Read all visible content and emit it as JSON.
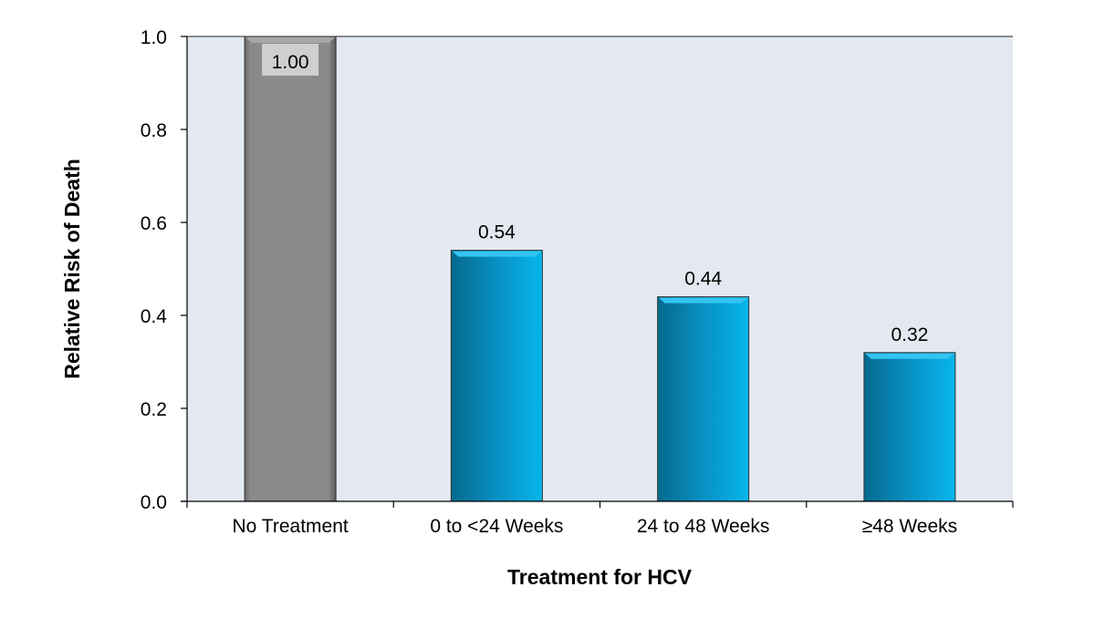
{
  "chart_data": {
    "type": "bar",
    "title": "",
    "xlabel": "Treatment for HCV",
    "ylabel": "Relative Risk of Death",
    "categories": [
      "No Treatment",
      "0 to <24 Weeks",
      "24 to 48 Weeks",
      "≥48 Weeks"
    ],
    "values": [
      1.0,
      0.54,
      0.44,
      0.32
    ],
    "data_labels": [
      "1.00",
      "0.54",
      "0.44",
      "0.32"
    ],
    "ylim": [
      0,
      1.0
    ],
    "yticks": [
      0.0,
      0.2,
      0.4,
      0.6,
      0.8,
      1.0
    ],
    "ytick_labels": [
      "0.0",
      "0.2",
      "0.4",
      "0.6",
      "0.8",
      "1.0"
    ],
    "grid": false,
    "legend": "none",
    "colors": {
      "plot_background": "#e4e9f1",
      "reference_bar": "#888888",
      "treatment_bars": "#05a8e0"
    }
  }
}
